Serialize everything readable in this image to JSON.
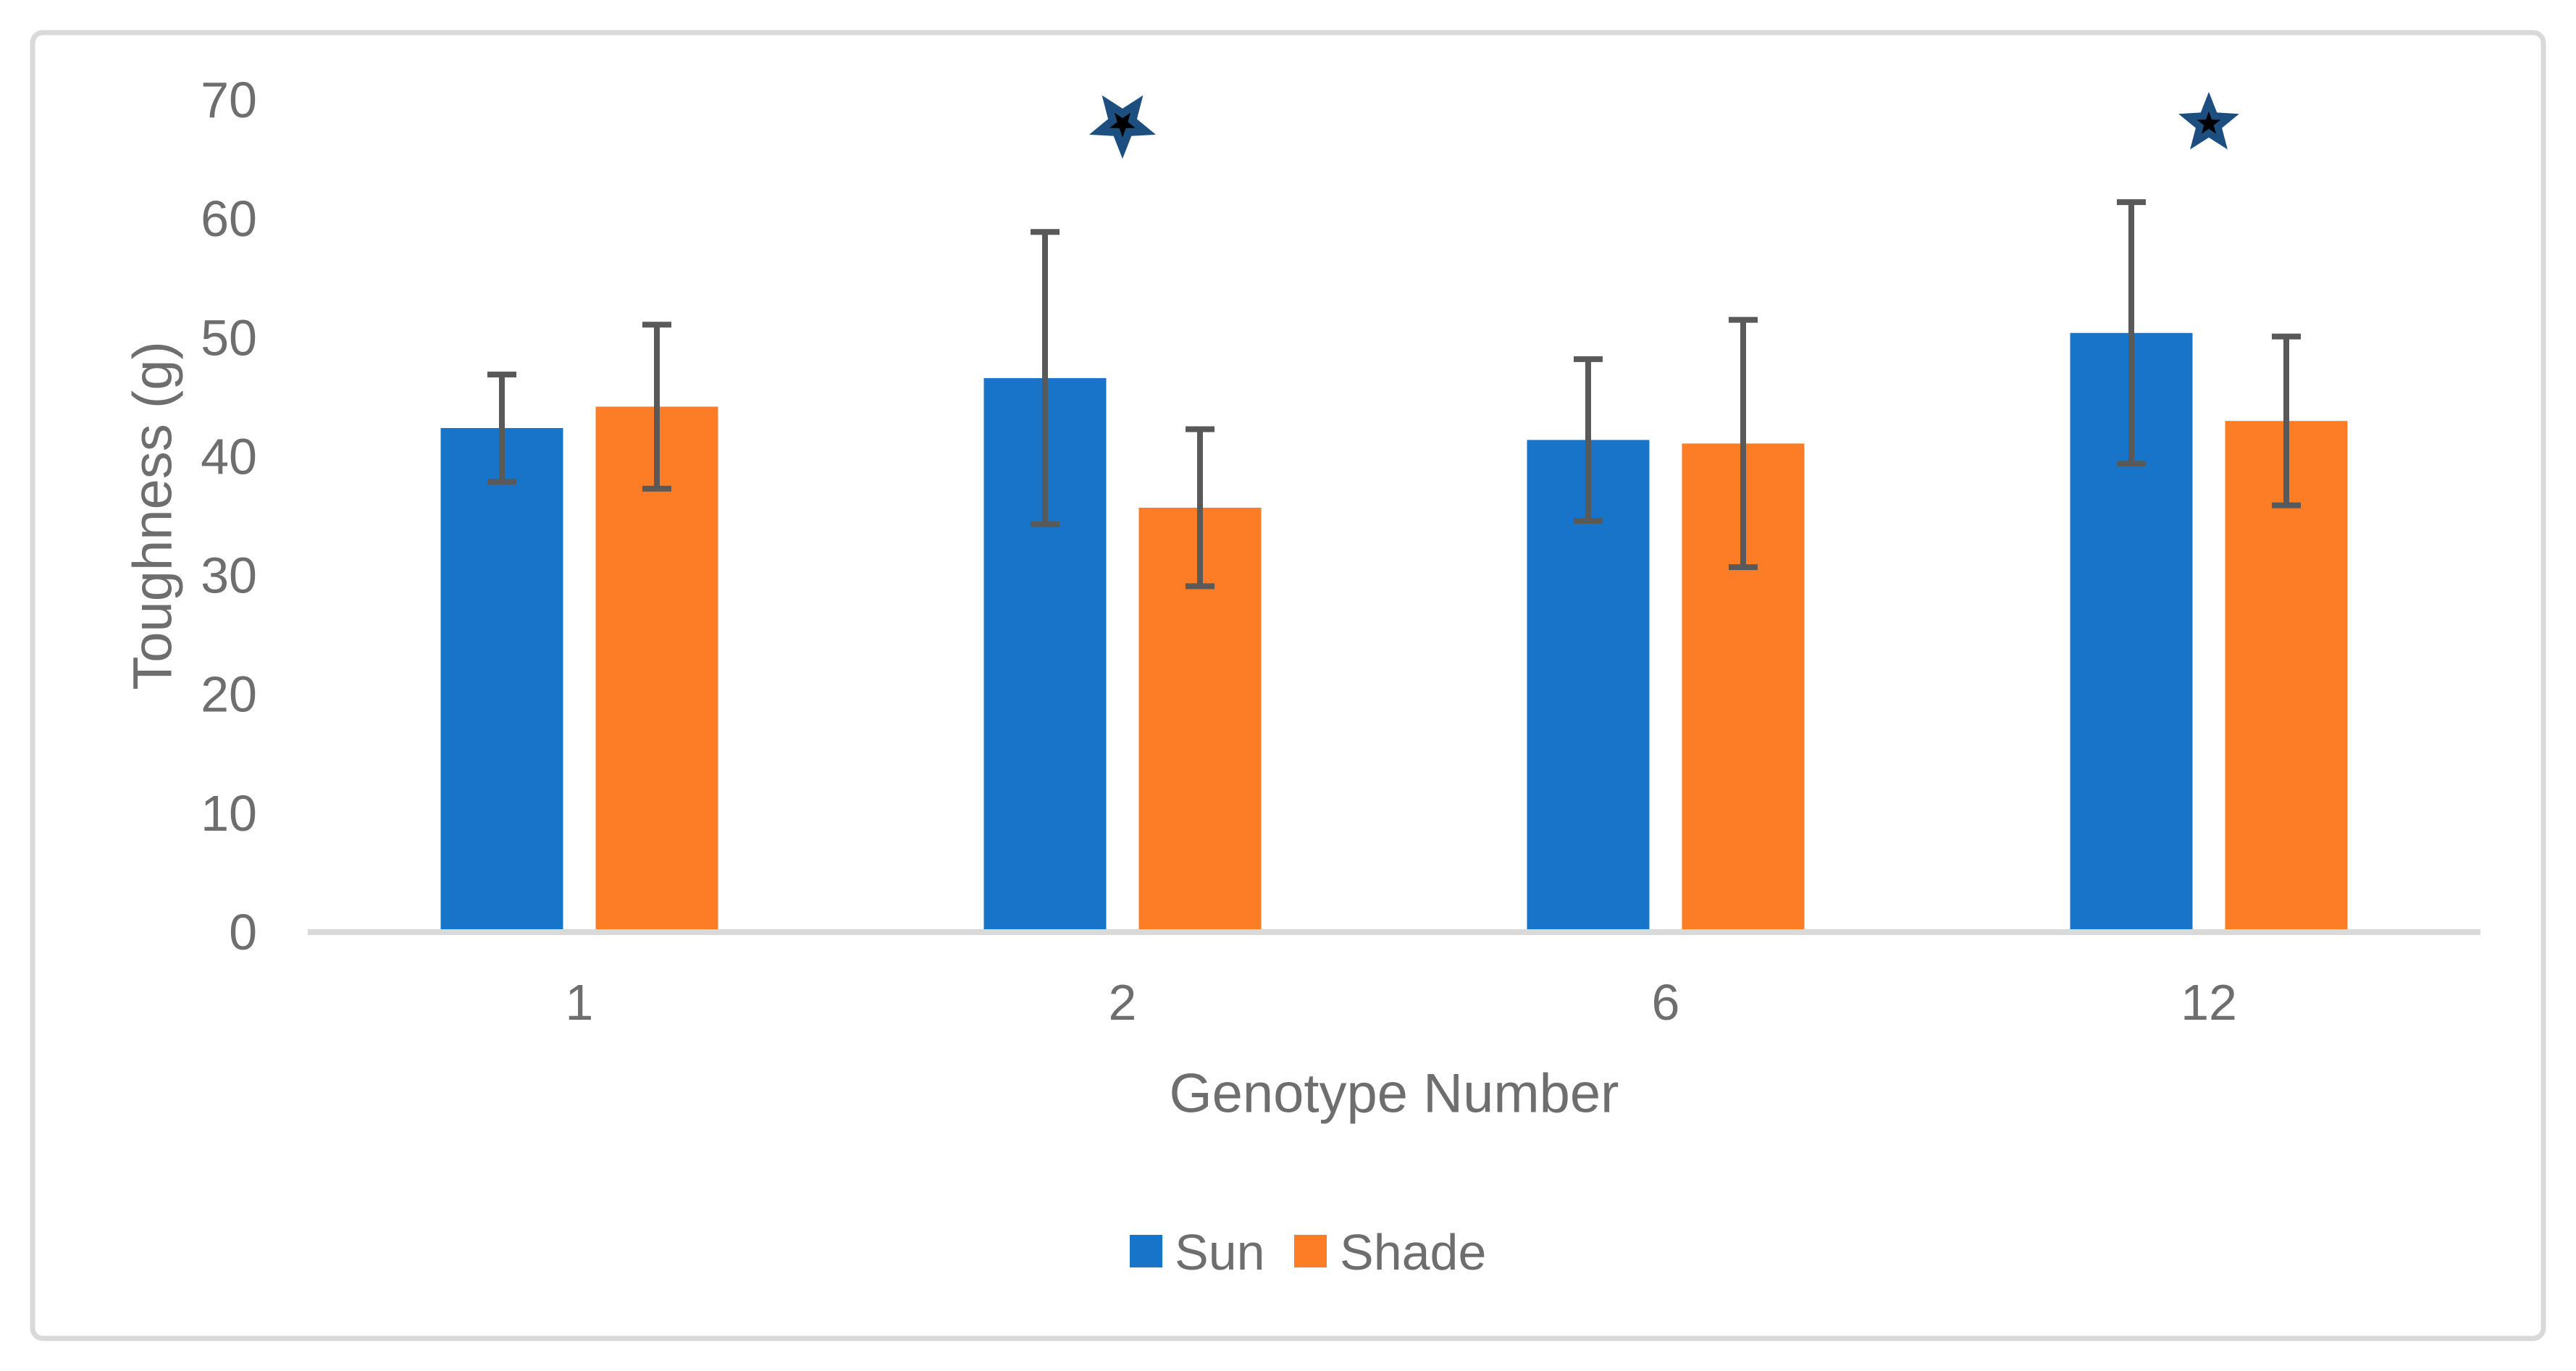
{
  "chart_data": {
    "type": "bar",
    "title": "",
    "xlabel": "Genotype Number",
    "ylabel": "Toughness (g)",
    "categories": [
      "1",
      "2",
      "6",
      "12"
    ],
    "series": [
      {
        "name": "Sun",
        "color": "#1874C8",
        "values": [
          42.4,
          46.6,
          41.4,
          50.4
        ],
        "error_plus": [
          4.5,
          12.3,
          6.8,
          11.0
        ],
        "error_minus": [
          4.5,
          12.3,
          6.8,
          11.0
        ]
      },
      {
        "name": "Shade",
        "color": "#FC7D26",
        "values": [
          44.2,
          35.7,
          41.1,
          43.0
        ],
        "error_plus": [
          6.9,
          6.6,
          10.4,
          7.1
        ],
        "error_minus": [
          6.9,
          6.6,
          10.4,
          7.1
        ]
      }
    ],
    "ylim": [
      0,
      70
    ],
    "yticks": [
      0,
      10,
      20,
      30,
      40,
      50,
      60,
      70
    ],
    "grid": false,
    "legend_position": "bottom",
    "annotations": [
      {
        "symbol": "star",
        "category": "2",
        "value": 68,
        "rotation": 180,
        "size": 1.1
      },
      {
        "symbol": "star",
        "category": "12",
        "value": 68,
        "rotation": 0,
        "size": 1.0
      }
    ]
  },
  "colors": {
    "sun": "#1874C8",
    "shade": "#FC7D26",
    "error_bar": "#595959",
    "axis_line": "#D9D9D9",
    "frame_border": "#D9D9D9",
    "tick_text": "#6E6E6E",
    "axis_title_text": "#6E6E6E",
    "legend_text": "#6E6E6E",
    "star_fill": "#1C4E80",
    "star_inner_fill": "#000000",
    "background": "#FFFFFF"
  }
}
